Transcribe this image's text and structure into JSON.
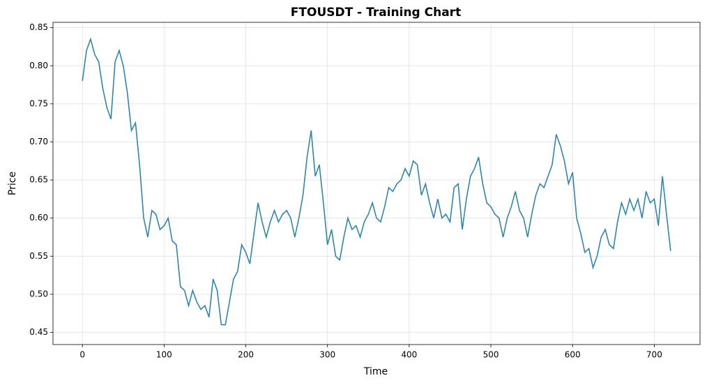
{
  "chart_data": {
    "type": "line",
    "title": "FTOUSDT - Training Chart",
    "x_label": "Time",
    "y_label": "Price",
    "x": [
      0,
      5,
      10,
      15,
      20,
      25,
      30,
      35,
      40,
      45,
      50,
      55,
      60,
      65,
      70,
      75,
      80,
      85,
      90,
      95,
      100,
      105,
      110,
      115,
      120,
      125,
      130,
      135,
      140,
      145,
      150,
      155,
      160,
      165,
      170,
      175,
      180,
      185,
      190,
      195,
      200,
      205,
      210,
      215,
      220,
      225,
      230,
      235,
      240,
      245,
      250,
      255,
      260,
      265,
      270,
      275,
      280,
      285,
      290,
      295,
      300,
      305,
      310,
      315,
      320,
      325,
      330,
      335,
      340,
      345,
      350,
      355,
      360,
      365,
      370,
      375,
      380,
      385,
      390,
      395,
      400,
      405,
      410,
      415,
      420,
      425,
      430,
      435,
      440,
      445,
      450,
      455,
      460,
      465,
      470,
      475,
      480,
      485,
      490,
      495,
      500,
      505,
      510,
      515,
      520,
      525,
      530,
      535,
      540,
      545,
      550,
      555,
      560,
      565,
      570,
      575,
      580,
      585,
      590,
      595,
      600,
      605,
      610,
      615,
      620,
      625,
      630,
      635,
      640,
      645,
      650,
      655,
      660,
      665,
      670,
      675,
      680,
      685,
      690,
      695,
      700,
      705,
      710,
      715,
      720
    ],
    "series": [
      {
        "name": "Price",
        "color": "#2e86ab",
        "values": [
          0.78,
          0.82,
          0.835,
          0.815,
          0.805,
          0.77,
          0.745,
          0.73,
          0.805,
          0.82,
          0.8,
          0.765,
          0.715,
          0.725,
          0.67,
          0.6,
          0.575,
          0.61,
          0.605,
          0.585,
          0.59,
          0.6,
          0.57,
          0.565,
          0.51,
          0.505,
          0.485,
          0.505,
          0.49,
          0.48,
          0.485,
          0.47,
          0.52,
          0.505,
          0.46,
          0.46,
          0.49,
          0.52,
          0.53,
          0.565,
          0.555,
          0.54,
          0.58,
          0.62,
          0.595,
          0.575,
          0.595,
          0.61,
          0.595,
          0.605,
          0.61,
          0.6,
          0.575,
          0.6,
          0.63,
          0.68,
          0.715,
          0.655,
          0.67,
          0.62,
          0.565,
          0.585,
          0.55,
          0.545,
          0.575,
          0.6,
          0.585,
          0.59,
          0.575,
          0.595,
          0.605,
          0.62,
          0.6,
          0.595,
          0.615,
          0.64,
          0.635,
          0.645,
          0.65,
          0.665,
          0.655,
          0.675,
          0.67,
          0.63,
          0.645,
          0.62,
          0.6,
          0.625,
          0.6,
          0.605,
          0.595,
          0.64,
          0.645,
          0.585,
          0.625,
          0.655,
          0.665,
          0.68,
          0.645,
          0.62,
          0.615,
          0.605,
          0.6,
          0.575,
          0.6,
          0.615,
          0.635,
          0.61,
          0.6,
          0.575,
          0.605,
          0.63,
          0.645,
          0.64,
          0.655,
          0.67,
          0.71,
          0.695,
          0.675,
          0.645,
          0.66,
          0.6,
          0.58,
          0.555,
          0.56,
          0.535,
          0.55,
          0.575,
          0.585,
          0.565,
          0.56,
          0.595,
          0.62,
          0.605,
          0.625,
          0.61,
          0.625,
          0.6,
          0.635,
          0.62,
          0.625,
          0.59,
          0.655,
          0.605,
          0.557
        ]
      }
    ],
    "xlim": [
      -36,
      756
    ],
    "ylim": [
      0.434,
      0.857
    ],
    "xticks": [
      0,
      100,
      200,
      300,
      400,
      500,
      600,
      700
    ],
    "yticks": [
      0.45,
      {
        "value": 0.5,
        "label": "0.50"
      },
      0.55,
      {
        "value": 0.6,
        "label": "0.60"
      },
      0.65,
      {
        "value": 0.7,
        "label": "0.70"
      },
      0.75,
      {
        "value": 0.8,
        "label": "0.80"
      },
      0.85
    ],
    "grid": true
  }
}
